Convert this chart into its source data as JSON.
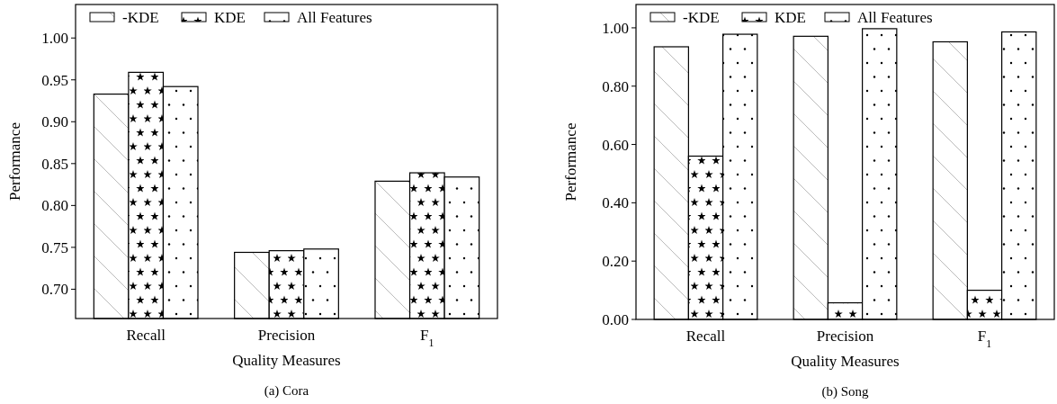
{
  "chart_data": [
    {
      "type": "bar",
      "xlabel": "Quality Measures",
      "ylabel": "Performance",
      "annotations": [
        "(a)  Cora"
      ],
      "categories": [
        "Recall",
        "Precision",
        "F$_{1}$"
      ],
      "legend": "top left",
      "ylim": [
        0.665,
        1.04
      ],
      "yticks": [
        {
          "value": 0.7,
          "label": "0.70"
        },
        {
          "value": 0.75,
          "label": "0.75"
        },
        {
          "value": 0.8,
          "label": "0.80"
        },
        {
          "value": 0.85,
          "label": "0.85"
        },
        {
          "value": 0.9,
          "label": "0.90"
        },
        {
          "value": 0.95,
          "label": "0.95"
        },
        {
          "value": 1.0,
          "label": "1.00"
        }
      ],
      "series": [
        {
          "name": "-KDE",
          "color": "#000000",
          "values": [
            0.933,
            0.744,
            0.829
          ]
        },
        {
          "name": "KDE",
          "color": "#000000",
          "values": [
            0.959,
            0.746,
            0.839
          ]
        },
        {
          "name": "All Features",
          "color": "#000000",
          "values": [
            0.942,
            0.748,
            0.834
          ]
        }
      ]
    },
    {
      "type": "bar",
      "xlabel": "Quality Measures",
      "ylabel": "Performance",
      "annotations": [
        "(b)  Song"
      ],
      "categories": [
        "Recall",
        "Precision",
        "F$_{1}$"
      ],
      "legend": "top left",
      "ylim": [
        0,
        1.08
      ],
      "yticks": [
        {
          "value": 0,
          "label": "0.00"
        },
        {
          "value": 0.2,
          "label": "0.20"
        },
        {
          "value": 0.4,
          "label": "0.40"
        },
        {
          "value": 0.6,
          "label": "0.60"
        },
        {
          "value": 0.8,
          "label": "0.80"
        },
        {
          "value": 1.0,
          "label": "1.00"
        }
      ],
      "series": [
        {
          "name": "-KDE",
          "color": "#000000",
          "values": [
            0.935,
            0.971,
            0.952
          ]
        },
        {
          "name": "KDE",
          "color": "#000000",
          "values": [
            0.56,
            0.057,
            0.1
          ]
        },
        {
          "name": "All Features",
          "color": "#000000",
          "values": [
            0.978,
            0.997,
            0.986
          ]
        }
      ]
    }
  ]
}
